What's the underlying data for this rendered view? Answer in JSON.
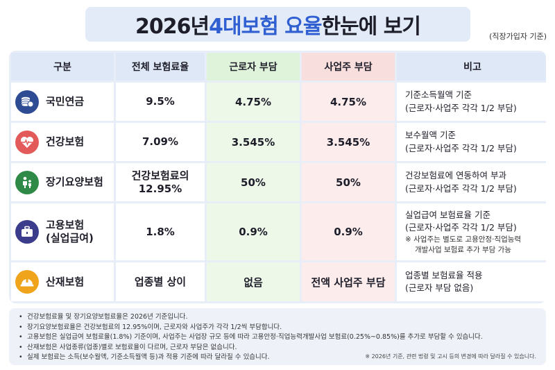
{
  "title": {
    "part1": "2026년 ",
    "highlight": "4대보험 요율",
    "part2": " 한눈에 보기"
  },
  "subtitle": "(직장가입자 기준)",
  "colors": {
    "title_bg": "#e3ebf8",
    "highlight": "#2f5fd0",
    "worker_col": "#edf8e9",
    "employer_col": "#fcecec",
    "pension_icon": "#2e4c94",
    "health_icon": "#e35a5a",
    "care_icon": "#2f8a48",
    "employment_icon": "#3b3c8c",
    "accident_icon": "#f0a41c"
  },
  "table": {
    "headers": {
      "category": "구분",
      "total": "전체 보험료율",
      "worker": "근로자 부담",
      "employer": "사업주 부담",
      "note": "비고"
    },
    "rows": [
      {
        "icon": "coins-icon",
        "name_line1": "국민연금",
        "name_line2": "",
        "total_line1": "9.5%",
        "total_line2": "",
        "worker": "4.75%",
        "employer": "4.75%",
        "note_line1": "기준소득월액 기준",
        "note_line2": "(근로자·사업주 각각 1/2 부담)",
        "note_small1": "",
        "note_small2": ""
      },
      {
        "icon": "heart-pulse-icon",
        "name_line1": "건강보험",
        "name_line2": "",
        "total_line1": "7.09%",
        "total_line2": "",
        "worker": "3.545%",
        "employer": "3.545%",
        "note_line1": "보수월액 기준",
        "note_line2": "(근로자·사업주 각각 1/2 부담)",
        "note_small1": "",
        "note_small2": ""
      },
      {
        "icon": "caregiver-icon",
        "name_line1": "장기요양보험",
        "name_line2": "",
        "total_line1": "건강보험료의",
        "total_line2": "12.95%",
        "worker": "50%",
        "employer": "50%",
        "note_line1": "건강보험료에 연동하여 부과",
        "note_line2": "(근로자·사업주 각각 1/2 부담)",
        "note_small1": "",
        "note_small2": ""
      },
      {
        "icon": "briefcase-icon",
        "name_line1": "고용보험",
        "name_line2": "(실업급여)",
        "total_line1": "1.8%",
        "total_line2": "",
        "worker": "0.9%",
        "employer": "0.9%",
        "note_line1": "실업급여 보험료율 기준",
        "note_line2": "(근로자·사업주 각각 1/2 부담)",
        "note_small1": "※ 사업주는 별도로 고용안정·직업능력",
        "note_small2": "개발사업 보험료 추가 부담 가능"
      },
      {
        "icon": "hard-hat-icon",
        "name_line1": "산재보험",
        "name_line2": "",
        "total_line1": "업종별 상이",
        "total_line2": "",
        "worker": "없음",
        "employer": "전액 사업주 부담",
        "note_line1": "업종별 보험료율 적용",
        "note_line2": "(근로자 부담 없음)",
        "note_small1": "",
        "note_small2": ""
      }
    ]
  },
  "footnotes": [
    "건강보험료율 및 장기요양보험료율은 2026년 기준입니다.",
    "장기요양보험료율은 건강보험료의 12.95%이며, 근로자와 사업주가 각각 1/2씩 부담합니다.",
    "고용보험은 실업급여 보험료율(1.8%) 기준이며, 사업주는 사업장 규모 등에 따라 고용안정·직업능력개발사업 보험료(0.25%~0.85%)를 추가로 부담할 수 있습니다.",
    "산재보험은 사업종류(업종)별로 보험료율이 다르며, 근로자 부담은 없습니다.",
    "실제 보험료는 소득(보수월액, 기준소득월액 등)과 적용 기준에 따라 달라질 수 있습니다."
  ],
  "source_note": "※ 2026년 기준, 관련 법령 및 고시 등의 변경에 따라 달라질 수 있습니다."
}
